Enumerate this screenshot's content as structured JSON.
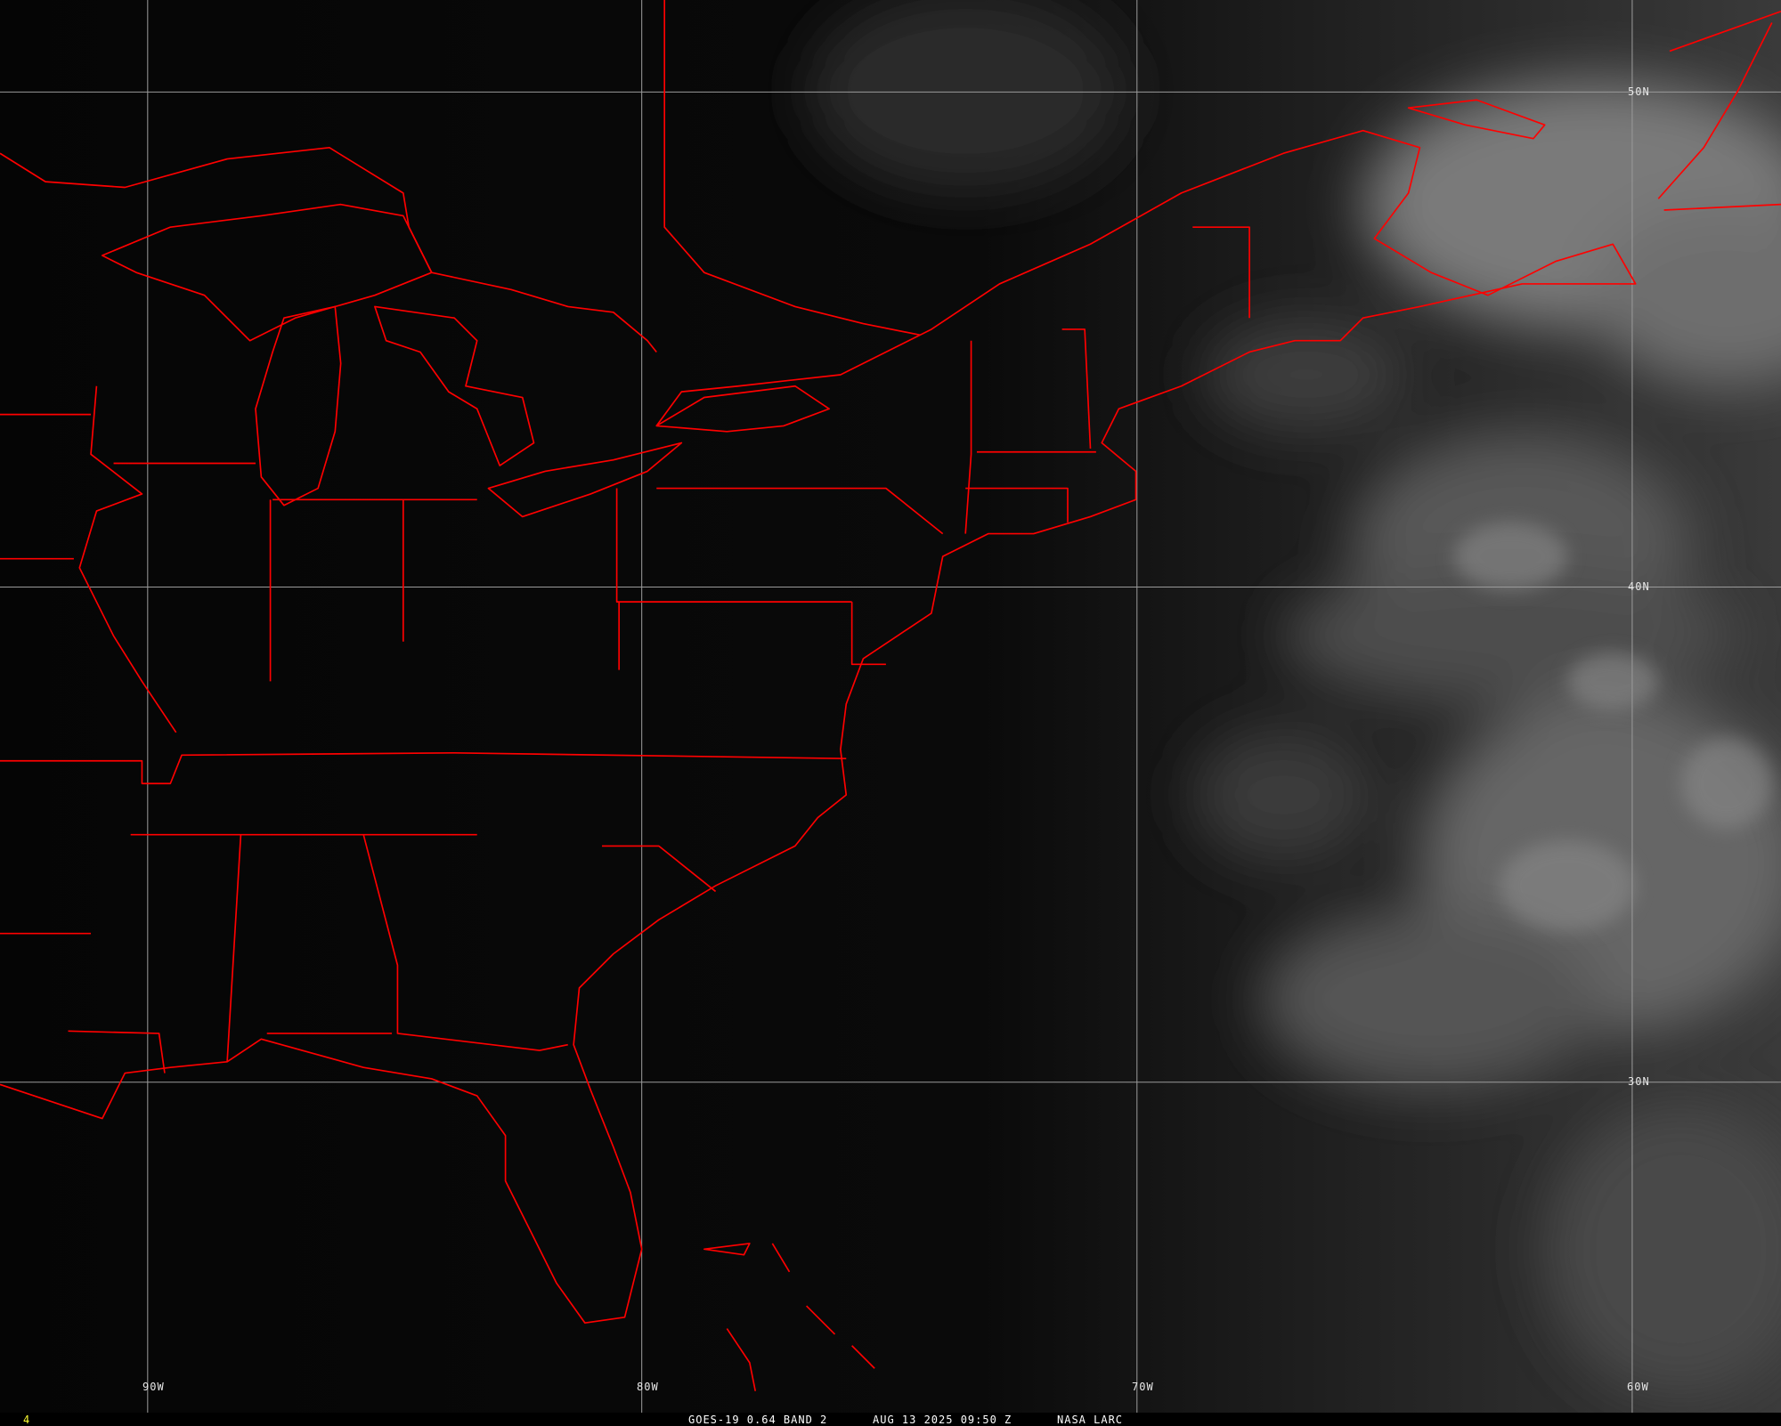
{
  "frame_number": "4",
  "caption": {
    "satellite": "GOES-19 0.64 BAND 2",
    "datetime": "AUG 13 2025 09:50 Z",
    "source": "NASA LARC"
  },
  "grid": {
    "longitudes": [
      "90W",
      "80W",
      "70W",
      "60W"
    ],
    "latitudes": [
      "50N",
      "40N",
      "30N"
    ]
  },
  "colors": {
    "boundaries": "#ff0000",
    "grid": "#9a9a9a",
    "frame_number": "#ffff33",
    "caption": "#ffffff"
  },
  "imagery": "visible satellite, clouds over western Atlantic"
}
